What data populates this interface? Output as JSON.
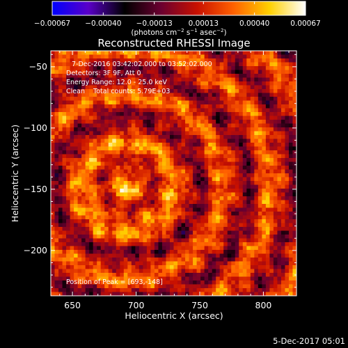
{
  "chart_data": {
    "type": "heatmap",
    "title": "Reconstructed RHESSI Image",
    "xlabel": "Heliocentric X (arcsec)",
    "ylabel": "Heliocentric Y (arcsec)",
    "xlim": [
      633,
      826
    ],
    "ylim": [
      -237,
      -37
    ],
    "x_ticks": [
      650,
      700,
      750,
      800
    ],
    "y_ticks": [
      -50,
      -100,
      -150,
      -200
    ],
    "x_tick_labels": [
      "650",
      "700",
      "750",
      "800"
    ],
    "y_tick_labels": [
      "−50",
      "−100",
      "−150",
      "−200"
    ],
    "colorbar": {
      "ticks": [
        -0.00067,
        -0.0004,
        -0.00013,
        0.00013,
        0.0004,
        0.00067
      ],
      "tick_labels": [
        "−0.00067",
        "−0.00040",
        "−0.00013",
        "0.00013",
        "0.00040",
        "0.00067"
      ],
      "range": [
        -0.00067,
        0.00067
      ],
      "units_prefix": "(photons cm",
      "units_exp1": "−2",
      "units_mid1": " s",
      "units_exp2": "−1",
      "units_mid2": " asec",
      "units_exp3": "−2",
      "units_suffix": ")",
      "stops": [
        "#0000ff",
        "#5a00c8",
        "#000000",
        "#6a0030",
        "#c81000",
        "#ff6000",
        "#ffd000",
        "#ffffff"
      ]
    },
    "annotations": {
      "line1": "7-Dec-2016 03:42:02.000 to 03:52:02.000",
      "line2": "Detectors: 3F 9F, Att 0",
      "line3": "Energy Range: 12.0 - 25.0 keV",
      "line4": "Clean    Total counts: 5.79E+03",
      "peak": "Position of Peak = [693,-148]"
    },
    "peak_position": [
      693,
      -148
    ],
    "grid": false,
    "legend": "none"
  },
  "footer": {
    "timestamp": "5-Dec-2017 05:01"
  },
  "colors": {
    "background": "#000000",
    "text": "#ffffff"
  }
}
